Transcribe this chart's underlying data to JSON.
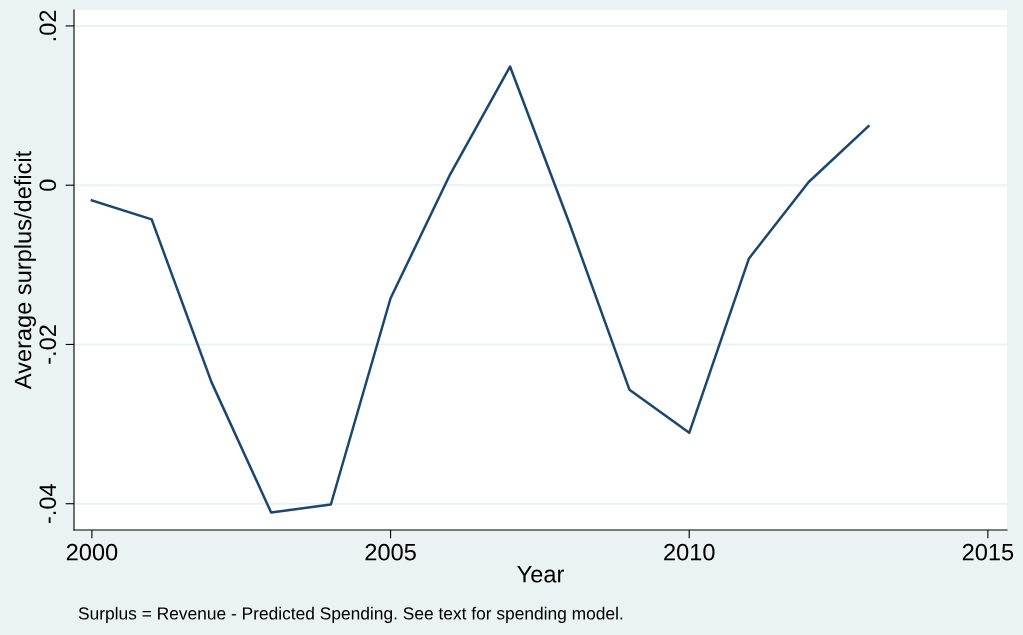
{
  "chart_data": {
    "type": "line",
    "xlabel": "Year",
    "ylabel": "Average surplus/deficit",
    "x": [
      2000,
      2001,
      2002,
      2003,
      2004,
      2005,
      2006,
      2007,
      2008,
      2009,
      2010,
      2011,
      2012,
      2013
    ],
    "series": [
      {
        "color": "#1a476f",
        "values": [
          -0.0019,
          -0.0043,
          -0.0247,
          -0.0411,
          -0.0401,
          -0.0142,
          0.0014,
          0.0149,
          -0.0049,
          -0.0257,
          -0.0311,
          -0.0092,
          0.0004,
          0.0074
        ]
      }
    ],
    "xlim": [
      1999.7,
      2015.32
    ],
    "xticks": [
      2000,
      2005,
      2010,
      2015
    ],
    "ylim": [
      -0.0433,
      0.022
    ],
    "yticks": [
      {
        "value": -0.04,
        "label": "-.04"
      },
      {
        "value": -0.02,
        "label": "-.02"
      },
      {
        "value": 0,
        "label": "0"
      },
      {
        "value": 0.02,
        "label": ".02"
      }
    ],
    "grid": "y",
    "legend": false,
    "marker": "none",
    "line_style": "solid",
    "annotations": [
      "Surplus = Revenue - Predicted Spending. See text for spending model."
    ]
  }
}
